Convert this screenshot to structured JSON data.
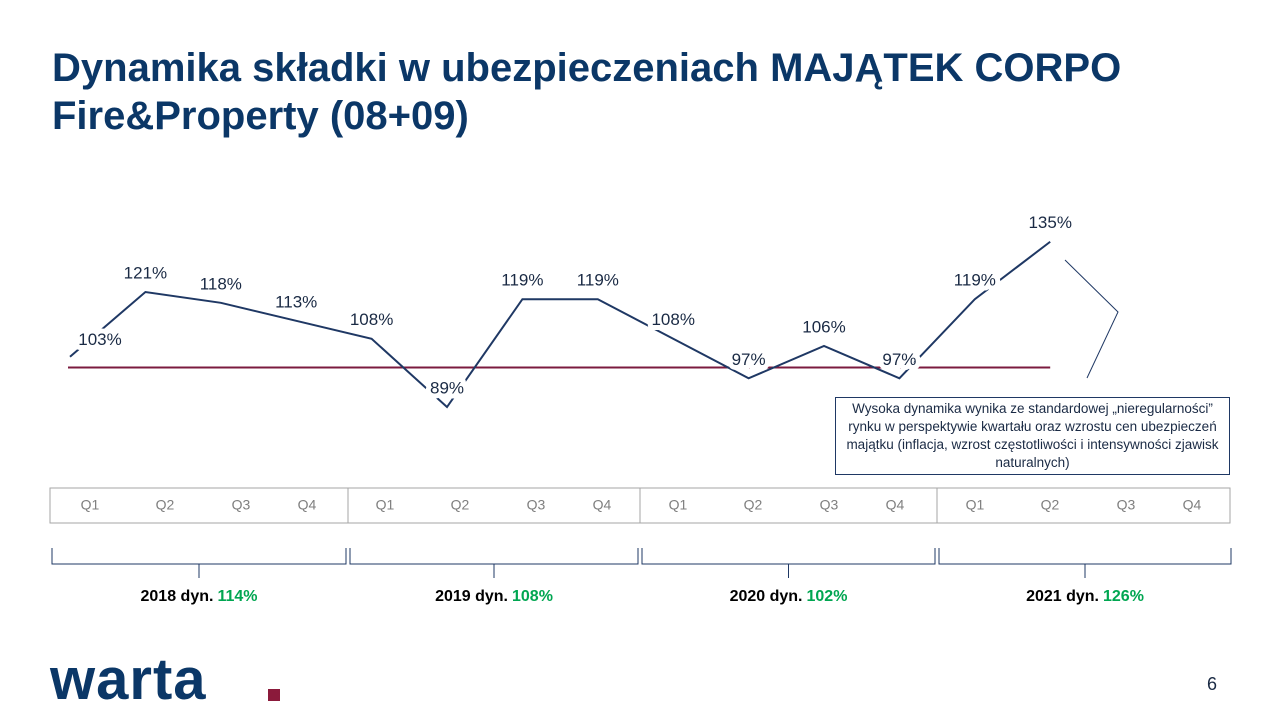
{
  "chart_data": {
    "type": "line",
    "title": "Dynamika składki w ubezpieczeniach MAJĄTEK CORPO Fire&Property (08+09)",
    "categories": [
      "Q1",
      "Q2",
      "Q3",
      "Q4",
      "Q1",
      "Q2",
      "Q3",
      "Q4",
      "Q1",
      "Q2",
      "Q3",
      "Q4",
      "Q1",
      "Q2",
      "Q3",
      "Q4"
    ],
    "series": [
      {
        "name": "Dynamika",
        "color": "#1f3864",
        "values": [
          103,
          121,
          118,
          113,
          108,
          89,
          119,
          119,
          108,
          97,
          106,
          97,
          119,
          135,
          null,
          null
        ],
        "value_labels": [
          "103%",
          "121%",
          "118%",
          "113%",
          "108%",
          "89%",
          "119%",
          "119%",
          "108%",
          "97%",
          "106%",
          "97%",
          "119%",
          "135%",
          null,
          null
        ]
      }
    ],
    "reference_line": 100,
    "reference_color": "#7b1b3f",
    "ylim": [
      70,
      145
    ],
    "annual_dynamics": {
      "labels": [
        "2018 dyn.",
        "2019 dyn.",
        "2020 dyn.",
        "2021 dyn."
      ],
      "values": [
        114,
        108,
        102,
        126
      ],
      "value_labels": [
        "114%",
        "108%",
        "102%",
        "126%"
      ],
      "color": "#00a651"
    },
    "annotation": "Wysoka dynamika wynika ze standardowej „nieregularności” rynku w perspektywie kwartału oraz wzrostu cen ubezpieczeń majątku (inflacja, wzrost częstotliwości i intensywności zjawisk naturalnych)"
  },
  "logo": "warta",
  "page_number": "6"
}
